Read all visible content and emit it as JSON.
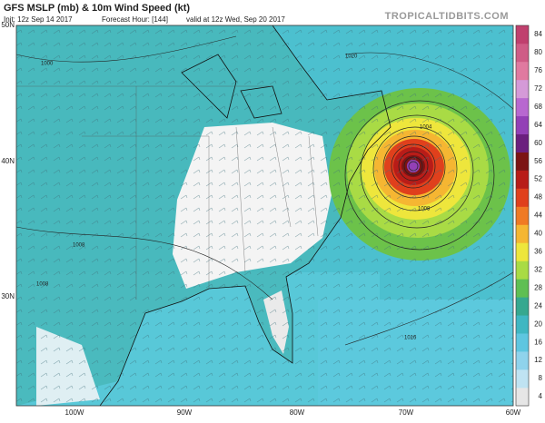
{
  "header": {
    "title": "GFS MSLP (mb) & 10m Wind Speed (kt)",
    "init": "Init: 12z Sep 14 2017",
    "forecast_hour": "Forecast Hour: [144]",
    "valid": "valid at 12z Wed, Sep 20 2017",
    "source": "TROPICALTIDBITS.COM"
  },
  "map": {
    "lat_labels": [
      "50N",
      "40N",
      "30N"
    ],
    "lon_labels": [
      "100W",
      "90W",
      "80W",
      "70W",
      "60W"
    ],
    "isobar_labels": [
      "1000",
      "1008",
      "1008",
      "1016",
      "1020",
      "1008",
      "1004"
    ]
  },
  "colorbar": {
    "ticks": [
      4,
      8,
      12,
      16,
      20,
      24,
      28,
      32,
      36,
      40,
      44,
      48,
      52,
      56,
      60,
      64,
      68,
      72,
      76,
      80,
      84
    ],
    "colors": [
      "#e6e6e6",
      "#bfe3f2",
      "#8fd3ec",
      "#5ec6e0",
      "#3fb7c2",
      "#36a88f",
      "#5fbf53",
      "#a9db45",
      "#eee63c",
      "#f5b632",
      "#f07a24",
      "#e0401c",
      "#b81c18",
      "#7c1414",
      "#6b1f7e",
      "#9340b6",
      "#b868d0",
      "#d59ad8",
      "#e07aa0",
      "#cf5c86",
      "#c0406e"
    ]
  }
}
